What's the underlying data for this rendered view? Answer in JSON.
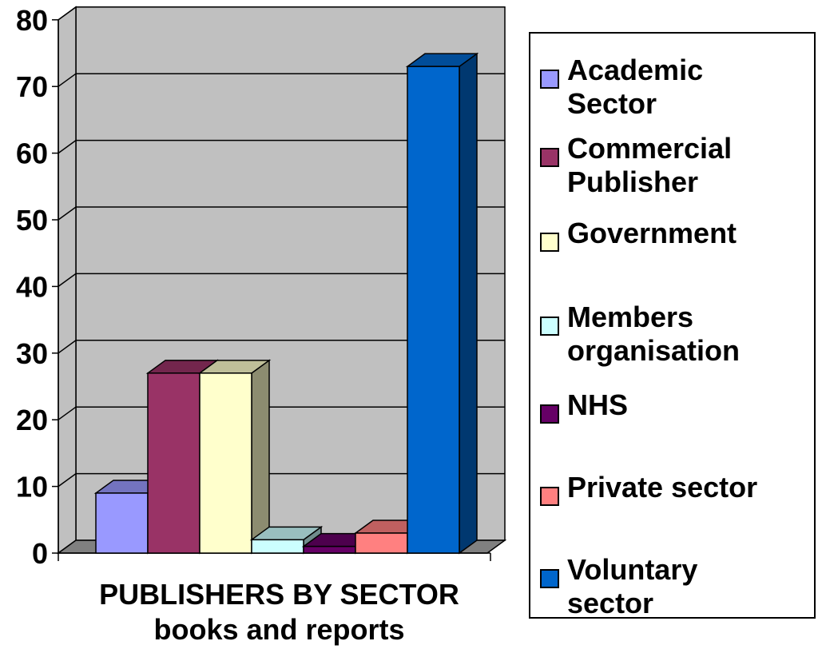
{
  "chart_data": {
    "type": "bar",
    "xlabel": "PUBLISHERS BY SECTOR\nbooks and reports",
    "ylim": [
      0,
      80
    ],
    "yticks": [
      0,
      10,
      20,
      30,
      40,
      50,
      60,
      70,
      80
    ],
    "grid": true,
    "three_d": true,
    "legend_position": "right",
    "series": [
      {
        "name": "Academic Sector",
        "values": [
          9
        ],
        "color": "#9999FF"
      },
      {
        "name": "Commercial Publisher",
        "values": [
          27
        ],
        "color": "#993366"
      },
      {
        "name": "Government",
        "values": [
          27
        ],
        "color": "#FFFFCC"
      },
      {
        "name": "Members organisation",
        "values": [
          2
        ],
        "color": "#CCFFFF"
      },
      {
        "name": "NHS",
        "values": [
          1
        ],
        "color": "#660066"
      },
      {
        "name": "Private sector",
        "values": [
          3
        ],
        "color": "#FF8080"
      },
      {
        "name": "Voluntary sector",
        "values": [
          73
        ],
        "color": "#0066CC"
      }
    ]
  },
  "legend": {
    "items": [
      {
        "label": "Academic\nSector"
      },
      {
        "label": "Commercial\nPublisher"
      },
      {
        "label": "Government"
      },
      {
        "label": "Members\norganisation"
      },
      {
        "label": "NHS"
      },
      {
        "label": "Private sector"
      },
      {
        "label": "Voluntary\nsector"
      }
    ]
  },
  "colors": {
    "plot_background": "#C0C0C0",
    "floor": "#808080",
    "gridline": "#000000"
  }
}
